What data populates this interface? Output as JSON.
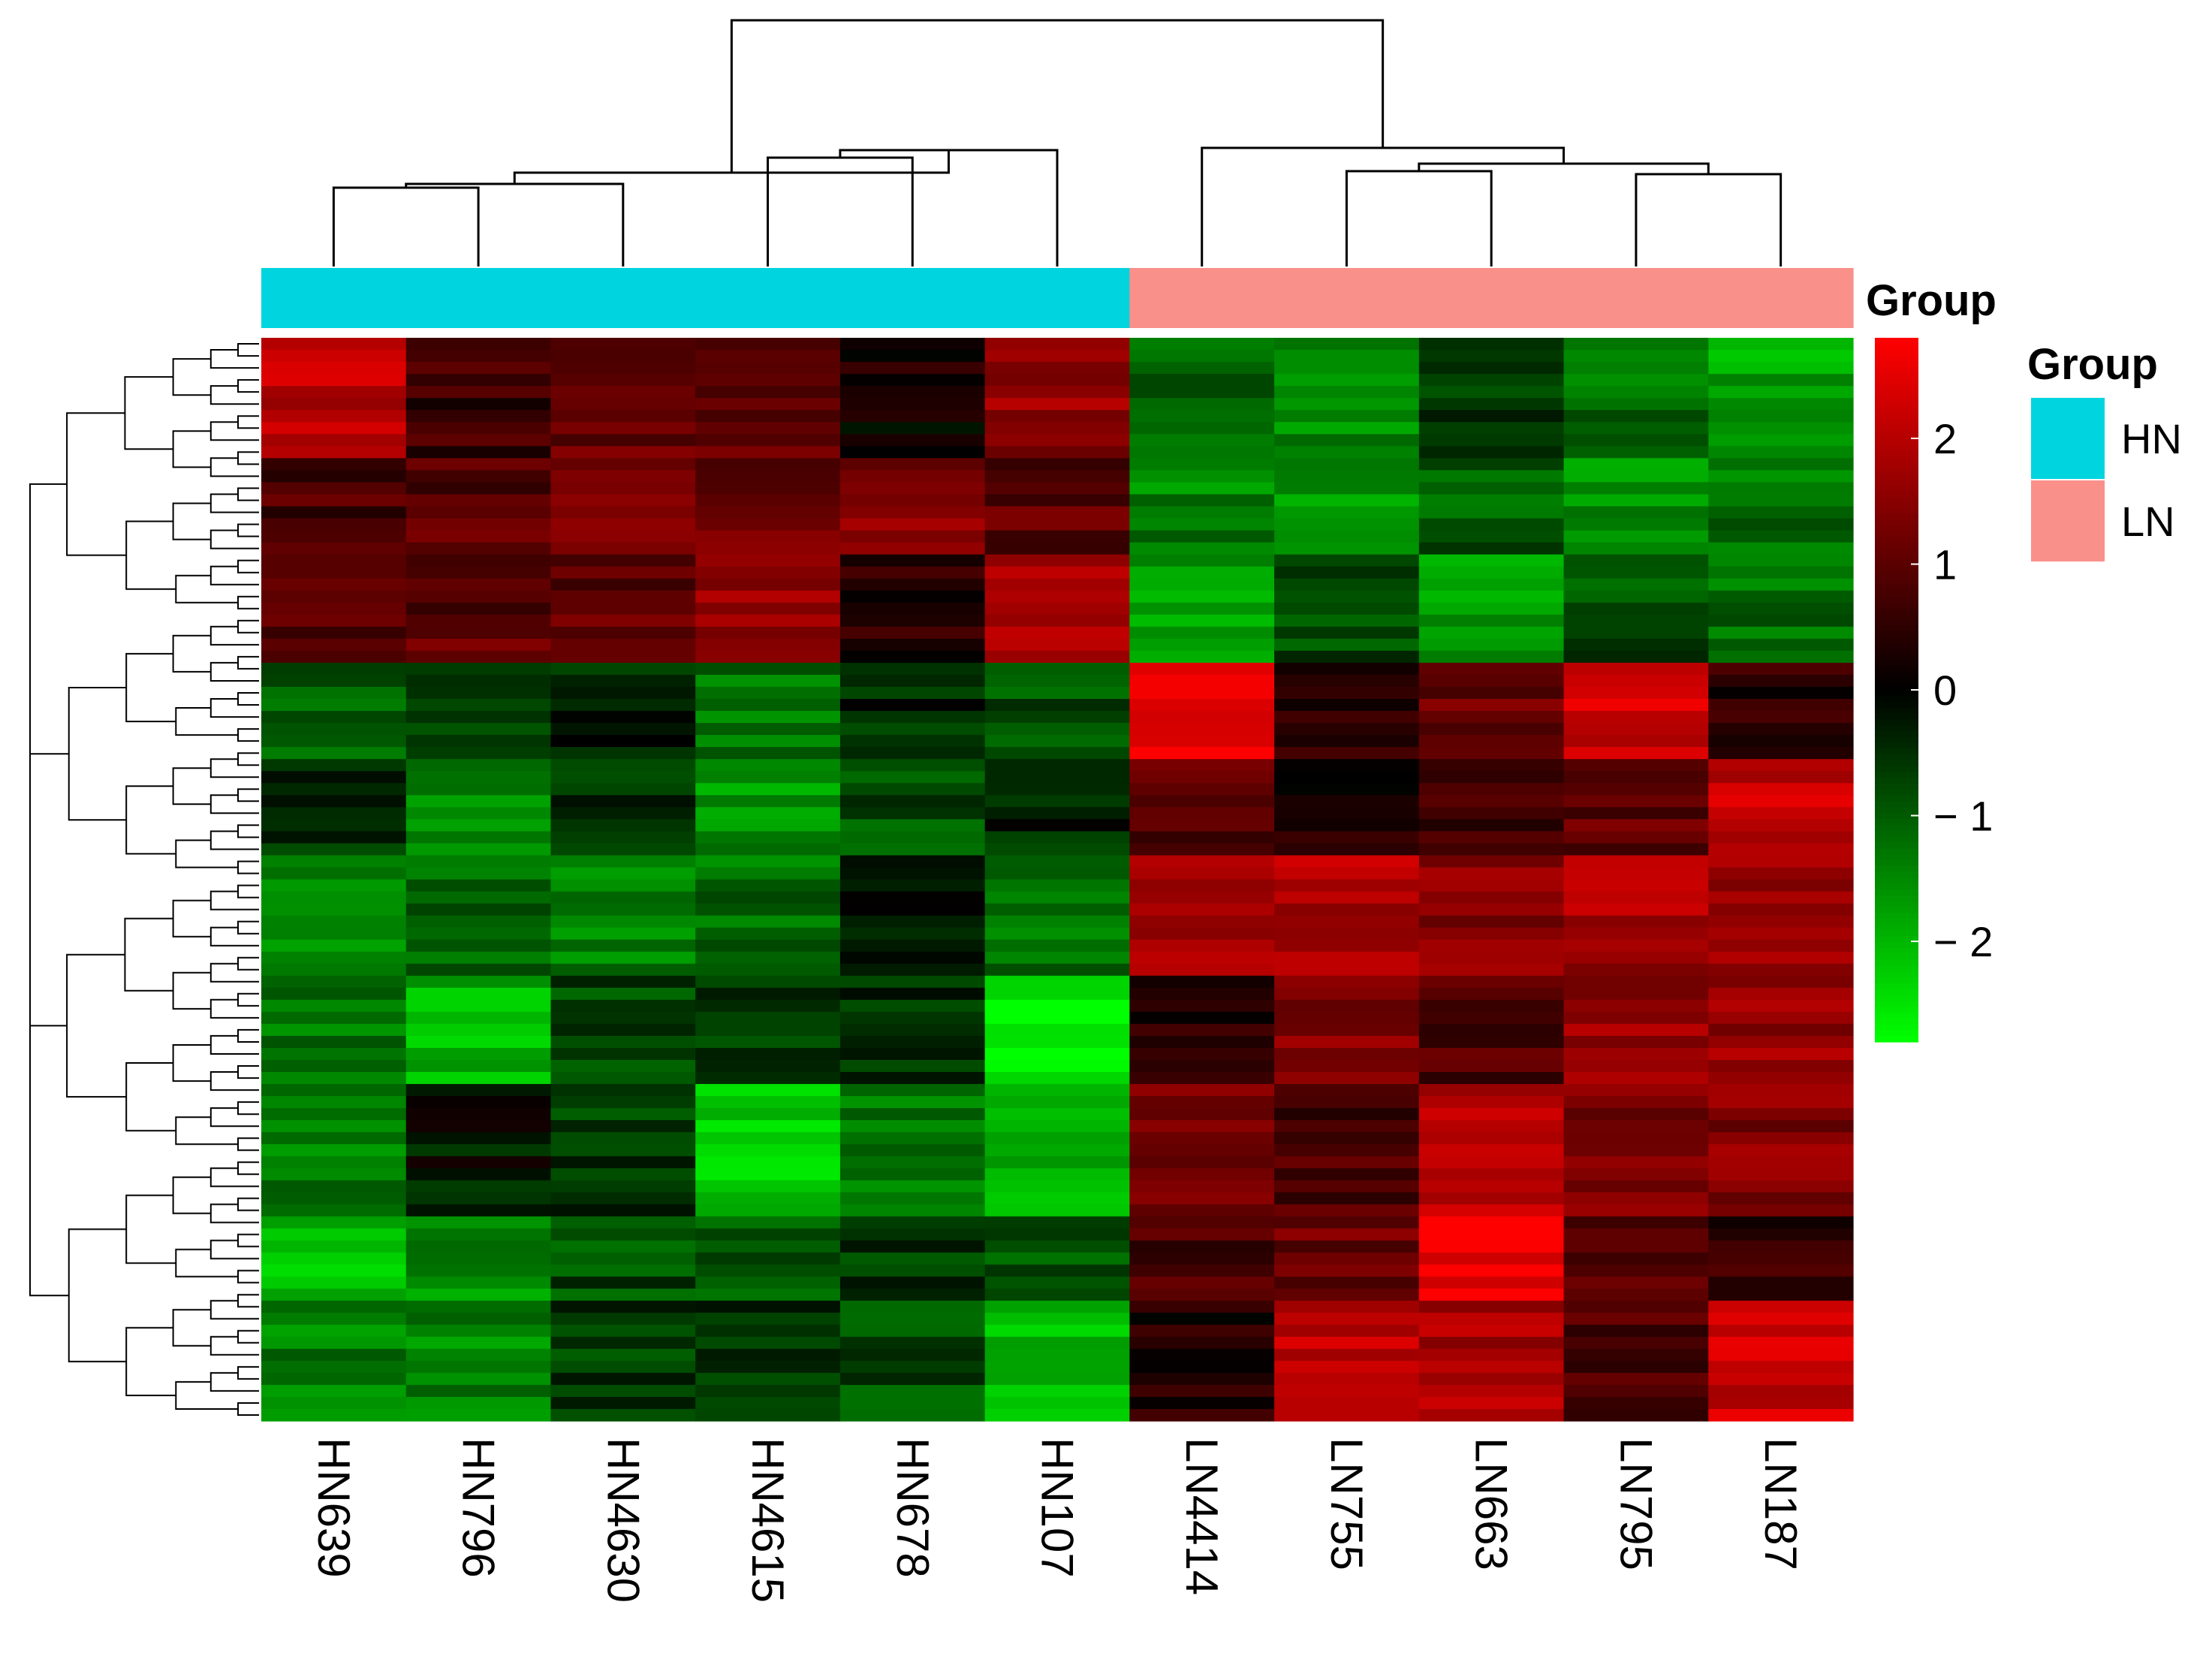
{
  "chart_data": {
    "type": "heatmap",
    "title": "",
    "xlabel": "",
    "ylabel": "",
    "samples": [
      "HN639",
      "HN796",
      "HN4630",
      "HN4615",
      "HN678",
      "HN107",
      "LN4414",
      "LN755",
      "LN663",
      "LN795",
      "LN187"
    ],
    "sample_groups": [
      "HN",
      "HN",
      "HN",
      "HN",
      "HN",
      "HN",
      "LN",
      "LN",
      "LN",
      "LN",
      "LN"
    ],
    "group_annotation_label": "Group",
    "legend": {
      "title": "Group",
      "entries": [
        {
          "label": "HN",
          "color": "#00d4df"
        },
        {
          "label": "LN",
          "color": "#f9908a"
        }
      ]
    },
    "color_scale": {
      "low_color": "#00ff00",
      "mid_color": "#000000",
      "high_color": "#ff0000",
      "range": [
        -2.8,
        2.8
      ],
      "ticks": [
        2,
        1,
        0,
        -1,
        -2
      ],
      "tick_labels": [
        "2",
        "1",
        "0",
        "− 1",
        "− 2"
      ]
    },
    "row_count": 90,
    "row_blocks": [
      {
        "rows": 10,
        "values": [
          2.0,
          0.6,
          1.2,
          1.0,
          0.2,
          1.6,
          -1.0,
          -1.6,
          -0.6,
          -1.2,
          -1.8
        ]
      },
      {
        "rows": 8,
        "values": [
          0.8,
          0.9,
          1.4,
          1.2,
          1.4,
          1.0,
          -1.4,
          -1.6,
          -1.0,
          -1.6,
          -1.2
        ]
      },
      {
        "rows": 9,
        "values": [
          0.8,
          1.0,
          1.0,
          1.6,
          0.4,
          2.0,
          -1.8,
          -0.8,
          -1.6,
          -0.8,
          -1.2
        ]
      },
      {
        "rows": 8,
        "values": [
          -1.0,
          -0.6,
          -0.4,
          -1.2,
          -0.4,
          -0.8,
          2.7,
          0.6,
          1.2,
          2.2,
          0.4
        ]
      },
      {
        "rows": 8,
        "values": [
          -0.4,
          -1.4,
          -0.6,
          -1.6,
          -0.8,
          -0.4,
          1.0,
          0.4,
          0.6,
          1.0,
          2.2
        ]
      },
      {
        "rows": 10,
        "values": [
          -1.4,
          -1.0,
          -1.4,
          -1.2,
          -0.2,
          -1.2,
          1.8,
          1.9,
          1.4,
          1.8,
          1.8
        ]
      },
      {
        "rows": 9,
        "values": [
          -1.2,
          -2.0,
          -0.8,
          -0.6,
          -0.4,
          -2.6,
          0.4,
          1.4,
          0.8,
          1.6,
          1.6
        ]
      },
      {
        "rows": 11,
        "values": [
          -1.4,
          -0.2,
          -0.6,
          -2.2,
          -1.4,
          -1.8,
          1.4,
          0.8,
          2.0,
          1.4,
          1.4
        ]
      },
      {
        "rows": 7,
        "values": [
          -2.0,
          -1.6,
          -0.8,
          -1.0,
          -0.6,
          -1.0,
          0.8,
          1.2,
          2.7,
          0.8,
          0.6
        ]
      },
      {
        "rows": 10,
        "values": [
          -1.4,
          -1.4,
          -0.6,
          -0.6,
          -0.8,
          -2.0,
          0.4,
          2.0,
          1.8,
          0.8,
          2.2
        ]
      }
    ]
  }
}
